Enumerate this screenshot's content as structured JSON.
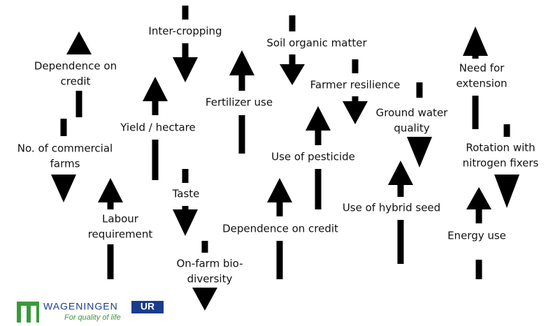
{
  "nodes": [
    {
      "lines": [
        "Dependence on",
        "credit"
      ]
    },
    {
      "lines": [
        "No. of commercial",
        "farms"
      ]
    },
    {
      "lines": [
        "Inter-cropping"
      ]
    },
    {
      "lines": [
        "Yield / hectare"
      ]
    },
    {
      "lines": [
        "Fertilizer use"
      ]
    },
    {
      "lines": [
        "Soil organic matter"
      ]
    },
    {
      "lines": [
        "Farmer resilience"
      ]
    },
    {
      "lines": [
        "Use of pesticide"
      ]
    },
    {
      "lines": [
        "Ground water",
        "quality"
      ]
    },
    {
      "lines": [
        "Need for",
        "extension"
      ]
    },
    {
      "lines": [
        "Rotation with",
        "nitrogen fixers"
      ]
    },
    {
      "lines": [
        "Energy use"
      ]
    },
    {
      "lines": [
        "Use of hybrid seed"
      ]
    },
    {
      "lines": [
        "Dependence on credit"
      ]
    },
    {
      "lines": [
        "Taste"
      ]
    },
    {
      "lines": [
        "Labour",
        "requirement"
      ]
    },
    {
      "lines": [
        "On-farm bio-",
        "diversity"
      ]
    }
  ],
  "logo": {
    "name": "WAGENINGEN",
    "suffix": "UR",
    "tagline": "For quality of life"
  }
}
